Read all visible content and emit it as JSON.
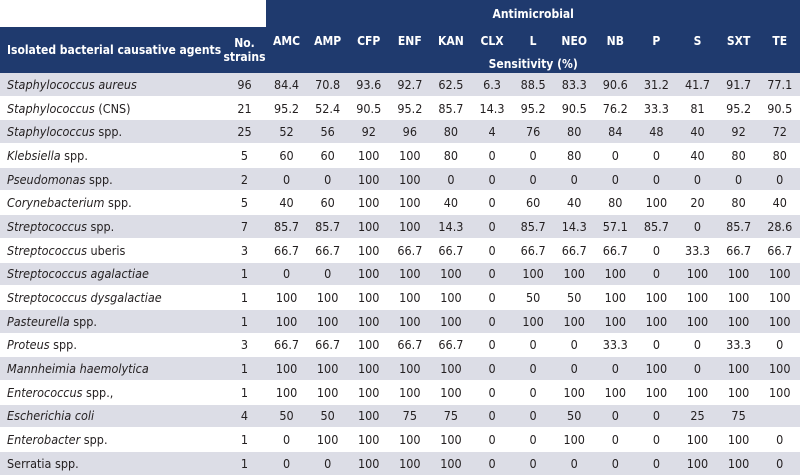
{
  "colors": {
    "header_bg": "#1f3a6e",
    "band_bg": "#dcdde6",
    "header_text": "#ffffff"
  },
  "header": {
    "antimicrobial": "Antimicrobial",
    "agents": "Isolated bacterial causative agents",
    "strains_line1": "No.",
    "strains_line2": "strains",
    "sensitivity": "Sensitivity (%)",
    "drugs": [
      "AMC",
      "AMP",
      "CFP",
      "ENF",
      "KAN",
      "CLX",
      "L",
      "NEO",
      "NB",
      "P",
      "S",
      "SXT",
      "TE"
    ]
  },
  "rows": [
    {
      "name_italic": "Staphylococcus aureus",
      "name_plain": "",
      "strains": "96",
      "values": [
        "84.4",
        "70.8",
        "93.6",
        "92.7",
        "62.5",
        "6.3",
        "88.5",
        "83.3",
        "90.6",
        "31.2",
        "41.7",
        "91.7",
        "77.1"
      ]
    },
    {
      "name_italic": "Staphylococcus",
      "name_plain": " (CNS)",
      "strains": "21",
      "values": [
        "95.2",
        "52.4",
        "90.5",
        "95.2",
        "85.7",
        "14.3",
        "95.2",
        "90.5",
        "76.2",
        "33.3",
        "81",
        "95.2",
        "90.5"
      ]
    },
    {
      "name_italic": "Staphylococcus",
      "name_plain": " spp.",
      "strains": "25",
      "values": [
        "52",
        "56",
        "92",
        "96",
        "80",
        "4",
        "76",
        "80",
        "84",
        "48",
        "40",
        "92",
        "72"
      ]
    },
    {
      "name_italic": "Klebsiella",
      "name_plain": " spp.",
      "strains": "5",
      "values": [
        "60",
        "60",
        "100",
        "100",
        "80",
        "0",
        "0",
        "80",
        "0",
        "0",
        "40",
        "80",
        "80"
      ]
    },
    {
      "name_italic": "Pseudomonas",
      "name_plain": " spp.",
      "strains": "2",
      "values": [
        "0",
        "0",
        "100",
        "100",
        "0",
        "0",
        "0",
        "0",
        "0",
        "0",
        "0",
        "0",
        "0"
      ]
    },
    {
      "name_italic": "Corynebacterium",
      "name_plain": " spp.",
      "strains": "5",
      "values": [
        "40",
        "60",
        "100",
        "100",
        "40",
        "0",
        "60",
        "40",
        "80",
        "100",
        "20",
        "80",
        "40"
      ]
    },
    {
      "name_italic": "Streptococcus",
      "name_plain": " spp.",
      "strains": "7",
      "values": [
        "85.7",
        "85.7",
        "100",
        "100",
        "14.3",
        "0",
        "85.7",
        "14.3",
        "57.1",
        "85.7",
        "0",
        "85.7",
        "28.6"
      ]
    },
    {
      "name_italic": "Streptococcus",
      "name_plain": " uberis",
      "strains": "3",
      "values": [
        "66.7",
        "66.7",
        "100",
        "66.7",
        "66.7",
        "0",
        "66.7",
        "66.7",
        "66.7",
        "0",
        "33.3",
        "66.7",
        "66.7"
      ]
    },
    {
      "name_italic": "Streptococcus agalactiae",
      "name_plain": "",
      "strains": "1",
      "values": [
        "0",
        "0",
        "100",
        "100",
        "100",
        "0",
        "100",
        "100",
        "100",
        "0",
        "100",
        "100",
        "100"
      ]
    },
    {
      "name_italic": "Streptococcus dysgalactiae",
      "name_plain": "",
      "strains": "1",
      "values": [
        "100",
        "100",
        "100",
        "100",
        "100",
        "0",
        "50",
        "50",
        "100",
        "100",
        "100",
        "100",
        "100"
      ]
    },
    {
      "name_italic": "Pasteurella",
      "name_plain": " spp.",
      "strains": "1",
      "values": [
        "100",
        "100",
        "100",
        "100",
        "100",
        "0",
        "100",
        "100",
        "100",
        "100",
        "100",
        "100",
        "100"
      ]
    },
    {
      "name_italic": "Proteus",
      "name_plain": " spp.",
      "strains": "3",
      "values": [
        "66.7",
        "66.7",
        "100",
        "66.7",
        "66.7",
        "0",
        "0",
        "0",
        "33.3",
        "0",
        "0",
        "33.3",
        "0"
      ]
    },
    {
      "name_italic": "Mannheimia haemolytica",
      "name_plain": "",
      "strains": "1",
      "values": [
        "100",
        "100",
        "100",
        "100",
        "100",
        "0",
        "0",
        "0",
        "0",
        "100",
        "0",
        "100",
        "100"
      ]
    },
    {
      "name_italic": "Enterococcus",
      "name_plain": " spp.,",
      "strains": "1",
      "values": [
        "100",
        "100",
        "100",
        "100",
        "100",
        "0",
        "0",
        "100",
        "100",
        "100",
        "100",
        "100",
        "100"
      ]
    },
    {
      "name_italic": "Escherichia coli",
      "name_plain": "",
      "strains": "4",
      "values": [
        "50",
        "50",
        "100",
        "75",
        "75",
        "0",
        "0",
        "50",
        "0",
        "0",
        "25",
        "75",
        ""
      ]
    },
    {
      "name_italic": "Enterobacter",
      "name_plain": " spp.",
      "strains": "1",
      "values": [
        "0",
        "100",
        "100",
        "100",
        "100",
        "0",
        "0",
        "100",
        "0",
        "0",
        "100",
        "100",
        "0"
      ]
    },
    {
      "name_italic": "",
      "name_plain": "Serratia spp.",
      "strains": "1",
      "values": [
        "0",
        "0",
        "100",
        "100",
        "100",
        "0",
        "0",
        "0",
        "0",
        "0",
        "100",
        "100",
        "0"
      ]
    }
  ]
}
